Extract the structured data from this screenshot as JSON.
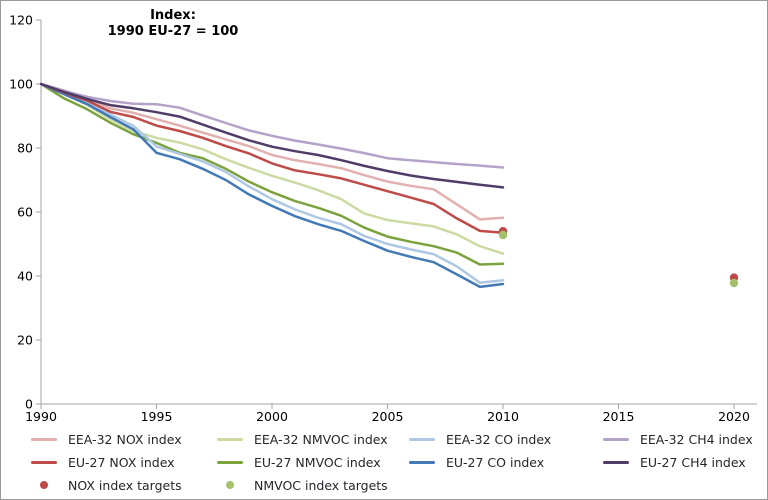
{
  "title": {
    "line1": "Index:",
    "line2": "1990 EU-27 = 100"
  },
  "chart_data": {
    "type": "line",
    "x": [
      1990,
      1991,
      1992,
      1993,
      1994,
      1995,
      1996,
      1997,
      1998,
      1999,
      2000,
      2001,
      2002,
      2003,
      2004,
      2005,
      2006,
      2007,
      2008,
      2009,
      2010
    ],
    "x_ticks": [
      1990,
      1995,
      2000,
      2005,
      2010,
      2015,
      2020
    ],
    "y_ticks": [
      0,
      20,
      40,
      60,
      80,
      100,
      120
    ],
    "xlim": [
      1990,
      2021
    ],
    "ylim": [
      0,
      120
    ],
    "grid": false,
    "legend_position": "bottom",
    "series": [
      {
        "name": "EEA-32 NMVOC index",
        "color": "#cbdba2",
        "values": [
          100,
          97.0,
          93.5,
          89.0,
          85.3,
          83.2,
          81.7,
          79.6,
          76.5,
          73.8,
          71.3,
          69.2,
          66.8,
          64.0,
          59.5,
          57.5,
          56.5,
          55.5,
          53.0,
          49.3,
          47.0
        ]
      },
      {
        "name": "EU-27 NMVOC index",
        "color": "#7ba23d",
        "values": [
          100,
          95.5,
          92.1,
          87.9,
          84.3,
          81.6,
          78.5,
          76.8,
          73.5,
          69.5,
          66.2,
          63.4,
          61.3,
          58.8,
          55.1,
          52.3,
          50.7,
          49.3,
          47.3,
          43.6,
          43.8
        ]
      },
      {
        "name": "EEA-32 CO index",
        "color": "#aec8e4",
        "values": [
          100,
          97.0,
          94.2,
          90.5,
          86.9,
          80.5,
          78.2,
          75.8,
          72.5,
          68.0,
          64.0,
          60.8,
          58.2,
          56.2,
          52.5,
          50.0,
          48.3,
          46.8,
          43.0,
          37.9,
          38.7
        ]
      },
      {
        "name": "EU-27 CO index",
        "color": "#4379b6",
        "values": [
          100,
          96.8,
          93.7,
          89.7,
          85.8,
          78.5,
          76.5,
          73.5,
          70.0,
          65.5,
          61.9,
          58.7,
          56.2,
          54.1,
          50.9,
          47.9,
          46.0,
          44.3,
          40.5,
          36.6,
          37.5
        ]
      },
      {
        "name": "EEA-32 NOX index",
        "color": "#e2b0ae",
        "values": [
          100,
          98.0,
          95.5,
          92.4,
          91.0,
          89.0,
          87.0,
          84.8,
          82.7,
          80.6,
          77.8,
          76.2,
          75.0,
          73.7,
          71.5,
          69.5,
          68.2,
          67.1,
          62.4,
          57.7,
          58.2
        ]
      },
      {
        "name": "EU-27 NOX index",
        "color": "#bf4b48",
        "values": [
          100,
          97.3,
          94.8,
          91.3,
          89.7,
          87.0,
          85.3,
          83.2,
          80.6,
          78.3,
          75.2,
          73.0,
          71.8,
          70.5,
          68.5,
          66.5,
          64.5,
          62.5,
          58.0,
          54.1,
          53.5
        ]
      },
      {
        "name": "EEA-32 CH4 index",
        "color": "#b3a3c9",
        "values": [
          100,
          97.8,
          96.0,
          94.7,
          93.8,
          93.7,
          92.6,
          90.2,
          87.8,
          85.5,
          83.8,
          82.3,
          81.1,
          79.8,
          78.4,
          76.8,
          76.2,
          75.6,
          75.0,
          74.5,
          73.9
        ]
      },
      {
        "name": "EU-27 CH4 index",
        "color": "#4f3d68",
        "values": [
          100,
          97.5,
          95.3,
          93.4,
          92.4,
          91.2,
          89.8,
          87.3,
          84.8,
          82.4,
          80.4,
          79.0,
          77.8,
          76.2,
          74.4,
          72.8,
          71.4,
          70.3,
          69.4,
          68.5,
          67.7
        ]
      }
    ],
    "targets": [
      {
        "name": "NOX index targets",
        "color": "#bf4b48",
        "points": [
          {
            "x": 2010,
            "y": 54.0
          },
          {
            "x": 2020,
            "y": 39.5
          }
        ]
      },
      {
        "name": "NMVOC index targets",
        "color": "#a4c06a",
        "points": [
          {
            "x": 2010,
            "y": 52.8
          },
          {
            "x": 2020,
            "y": 37.8
          }
        ]
      }
    ]
  },
  "legend": {
    "items": [
      {
        "label": "EEA-32 NOX index",
        "color": "#e2b0ae",
        "marker": "line"
      },
      {
        "label": "EU-27 NOX index",
        "color": "#bf4b48",
        "marker": "line"
      },
      {
        "label": "NOX index targets",
        "color": "#bf4b48",
        "marker": "dot"
      },
      {
        "label": "EEA-32 NMVOC index",
        "color": "#cbdba2",
        "marker": "line"
      },
      {
        "label": "EU-27 NMVOC index",
        "color": "#7ba23d",
        "marker": "line"
      },
      {
        "label": "NMVOC index targets",
        "color": "#a4c06a",
        "marker": "dot"
      },
      {
        "label": "EEA-32 CO index",
        "color": "#aec8e4",
        "marker": "line"
      },
      {
        "label": "EU-27 CO index",
        "color": "#4379b6",
        "marker": "line"
      },
      {
        "label": "EEA-32 CH4 index",
        "color": "#b3a3c9",
        "marker": "line"
      },
      {
        "label": "EU-27 CH4 index",
        "color": "#4f3d68",
        "marker": "line"
      }
    ]
  }
}
